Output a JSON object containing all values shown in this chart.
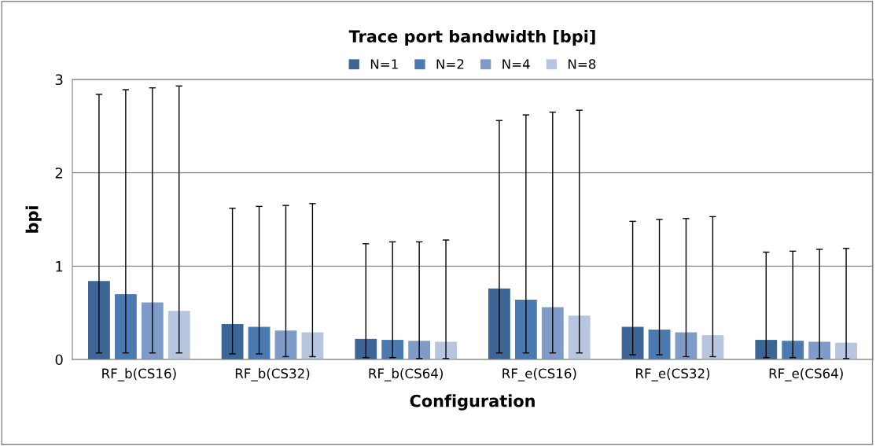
{
  "chart_data": {
    "type": "bar",
    "title": "Trace port bandwidth [bpi]",
    "xlabel": "Configuration",
    "ylabel": "bpi",
    "categories": [
      "RF_b(CS16)",
      "RF_b(CS32)",
      "RF_b(CS64)",
      "RF_e(CS16)",
      "RF_e(CS32)",
      "RF_e(CS64)"
    ],
    "series": [
      {
        "name": "N=1",
        "color": "#3d6696",
        "values": [
          0.84,
          0.38,
          0.22,
          0.76,
          0.35,
          0.21
        ],
        "errors": [
          [
            0.07,
            2.84
          ],
          [
            0.06,
            1.62
          ],
          [
            0.02,
            1.24
          ],
          [
            0.07,
            2.56
          ],
          [
            0.05,
            1.48
          ],
          [
            0.02,
            1.15
          ]
        ]
      },
      {
        "name": "N=2",
        "color": "#4a7ab0",
        "values": [
          0.7,
          0.35,
          0.21,
          0.64,
          0.32,
          0.2
        ],
        "errors": [
          [
            0.07,
            2.89
          ],
          [
            0.06,
            1.64
          ],
          [
            0.02,
            1.26
          ],
          [
            0.07,
            2.62
          ],
          [
            0.05,
            1.5
          ],
          [
            0.02,
            1.16
          ]
        ]
      },
      {
        "name": "N=4",
        "color": "#7f9cc8",
        "values": [
          0.61,
          0.31,
          0.2,
          0.56,
          0.29,
          0.19
        ],
        "errors": [
          [
            0.07,
            2.91
          ],
          [
            0.03,
            1.65
          ],
          [
            0.01,
            1.26
          ],
          [
            0.07,
            2.65
          ],
          [
            0.03,
            1.51
          ],
          [
            0.01,
            1.18
          ]
        ]
      },
      {
        "name": "N=8",
        "color": "#b7c5df",
        "values": [
          0.52,
          0.29,
          0.19,
          0.47,
          0.26,
          0.18
        ],
        "errors": [
          [
            0.07,
            2.93
          ],
          [
            0.03,
            1.67
          ],
          [
            0.01,
            1.28
          ],
          [
            0.07,
            2.67
          ],
          [
            0.03,
            1.53
          ],
          [
            0.01,
            1.19
          ]
        ]
      }
    ],
    "ylim": [
      0,
      3
    ],
    "yticks": [
      0,
      1,
      2,
      3
    ],
    "grid": "y",
    "legend": "top"
  }
}
